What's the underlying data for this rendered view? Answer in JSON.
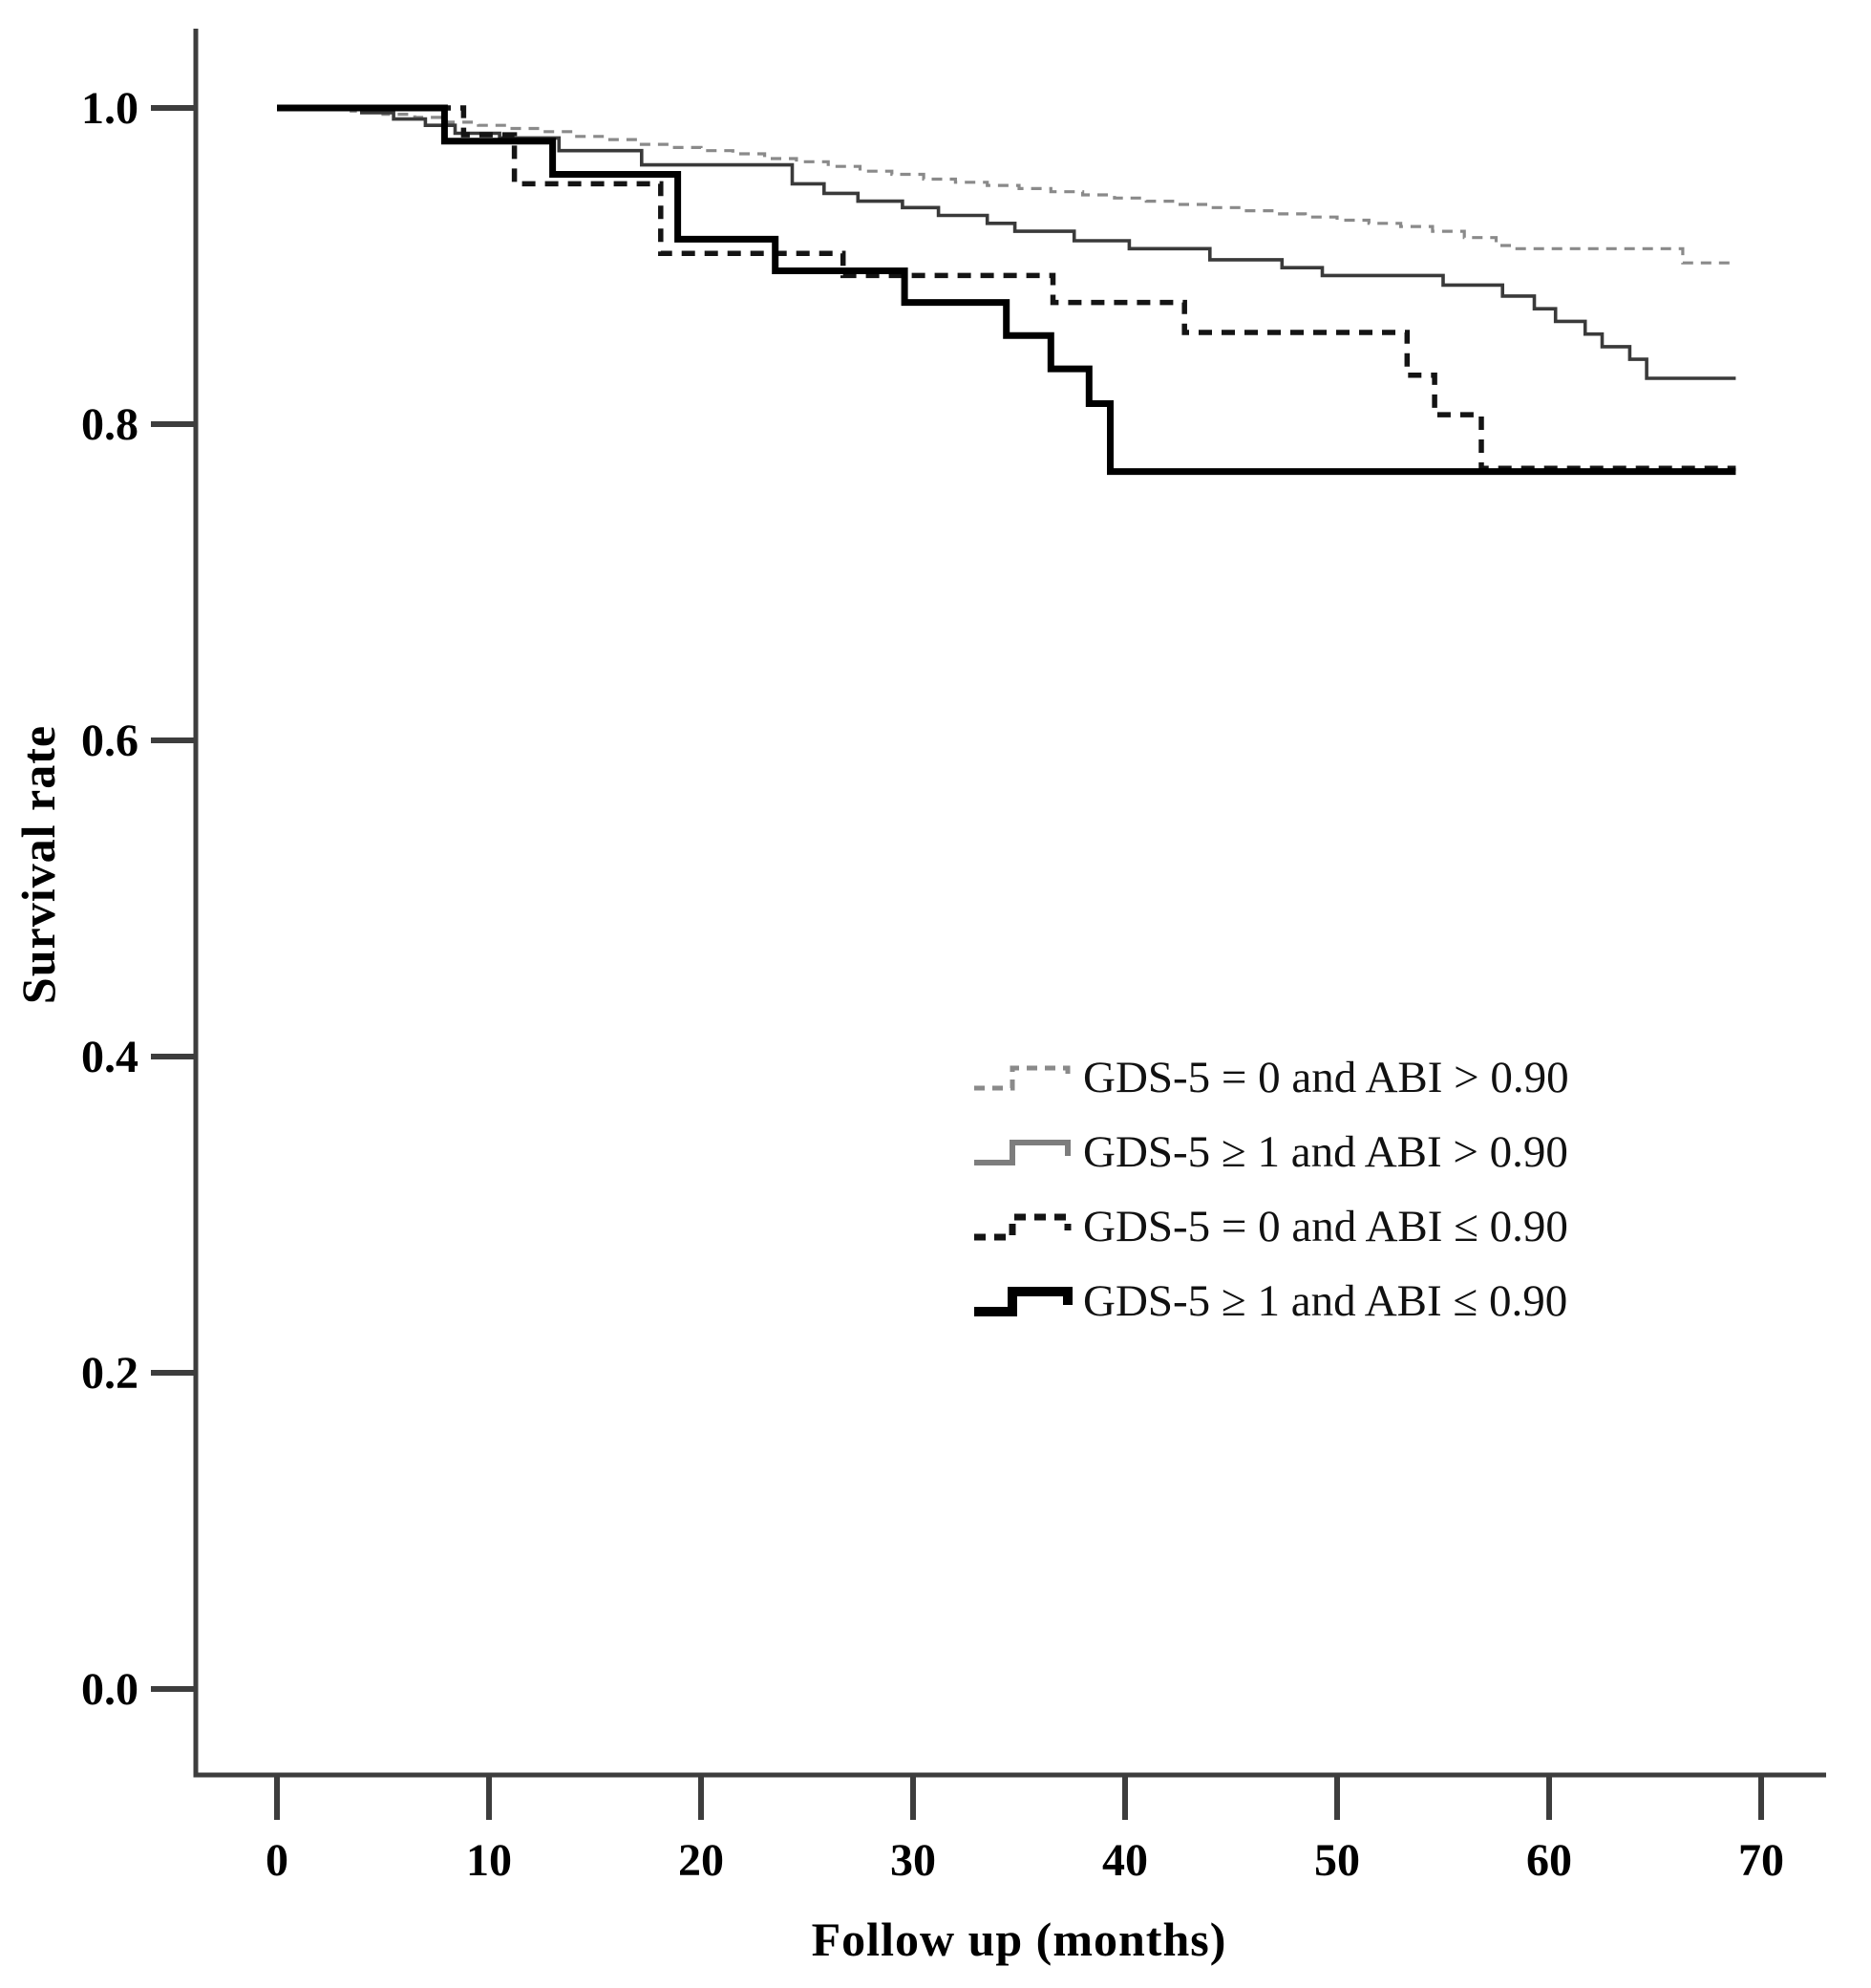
{
  "figure": {
    "background": "#ffffff"
  },
  "chart": {
    "y_label": "Survival rate",
    "x_label": "Follow up (months)",
    "axis_color": "#3d3d3d",
    "text_color": "#000000"
  },
  "legend": {
    "items": [
      {
        "label": "GDS-5 = 0 and ABI > 0.90",
        "swatch": "thin-dashed-gray"
      },
      {
        "label": "GDS-5 ≥ 1 and ABI > 0.90",
        "swatch": "thin-solid-gray"
      },
      {
        "label": "GDS-5 = 0 and ABI ≤ 0.90",
        "swatch": "thick-dashed-black"
      },
      {
        "label": "GDS-5 ≥ 1 and ABI ≤ 0.90",
        "swatch": "thick-solid-black"
      }
    ]
  },
  "chart_data": {
    "type": "line",
    "subtype": "kaplan-meier-step",
    "title": "",
    "xlabel": "Follow up (months)",
    "ylabel": "Survival rate",
    "xlim": [
      0,
      70
    ],
    "ylim": [
      0.0,
      1.0
    ],
    "grid": false,
    "legend_position": "center-right",
    "x_tick_values": [
      0,
      10,
      20,
      30,
      40,
      50,
      60,
      70
    ],
    "x_tick_labels": [
      "0",
      "10",
      "20",
      "30",
      "40",
      "50",
      "60",
      "70"
    ],
    "y_tick_values": [
      1.0,
      0.8,
      0.6,
      0.4,
      0.2,
      0.0
    ],
    "y_tick_labels": [
      "1.0",
      "0.8",
      "0.6",
      "0.4",
      "0.2",
      "0.0"
    ],
    "series": [
      {
        "name": "GDS-5 = 0 and ABI > 0.90",
        "color": "#8a8a8a",
        "width": 3.2,
        "dash": "11 8",
        "points": [
          [
            0,
            1.0
          ],
          [
            3.5,
            0.998
          ],
          [
            5,
            0.996
          ],
          [
            6.5,
            0.994
          ],
          [
            8,
            0.991
          ],
          [
            9.5,
            0.989
          ],
          [
            11,
            0.987
          ],
          [
            12.5,
            0.985
          ],
          [
            14,
            0.982
          ],
          [
            15.5,
            0.98
          ],
          [
            17,
            0.977
          ],
          [
            18.5,
            0.975
          ],
          [
            20,
            0.973
          ],
          [
            21.5,
            0.971
          ],
          [
            23,
            0.968
          ],
          [
            24.5,
            0.966
          ],
          [
            26,
            0.963
          ],
          [
            27.5,
            0.96
          ],
          [
            29,
            0.958
          ],
          [
            30.5,
            0.955
          ],
          [
            32,
            0.953
          ],
          [
            33.5,
            0.951
          ],
          [
            35,
            0.949
          ],
          [
            36.5,
            0.947
          ],
          [
            38,
            0.945
          ],
          [
            39.5,
            0.943
          ],
          [
            41,
            0.941
          ],
          [
            42.5,
            0.939
          ],
          [
            44,
            0.937
          ],
          [
            45.5,
            0.935
          ],
          [
            47,
            0.933
          ],
          [
            48.5,
            0.931
          ],
          [
            50,
            0.929
          ],
          [
            51.5,
            0.927
          ],
          [
            53,
            0.925
          ],
          [
            54.5,
            0.922
          ],
          [
            56,
            0.918
          ],
          [
            57.5,
            0.913
          ],
          [
            58.4,
            0.911
          ],
          [
            66.3,
            0.902
          ],
          [
            68.8,
            0.902
          ]
        ]
      },
      {
        "name": "GDS-5 ≥ 1 and ABI > 0.90",
        "color": "#3a3a3a",
        "width": 3.6,
        "dash": null,
        "points": [
          [
            0,
            1.0
          ],
          [
            4,
            0.997
          ],
          [
            5.5,
            0.993
          ],
          [
            7,
            0.989
          ],
          [
            8.4,
            0.984
          ],
          [
            10.5,
            0.981
          ],
          [
            13.3,
            0.973
          ],
          [
            17.2,
            0.964
          ],
          [
            24.3,
            0.952
          ],
          [
            25.8,
            0.946
          ],
          [
            27.4,
            0.941
          ],
          [
            29.5,
            0.937
          ],
          [
            31.2,
            0.932
          ],
          [
            33.5,
            0.927
          ],
          [
            34.8,
            0.922
          ],
          [
            37.6,
            0.916
          ],
          [
            40.2,
            0.911
          ],
          [
            44,
            0.904
          ],
          [
            47.4,
            0.899
          ],
          [
            49.3,
            0.894
          ],
          [
            55,
            0.888
          ],
          [
            57.8,
            0.881
          ],
          [
            59.3,
            0.873
          ],
          [
            60.3,
            0.865
          ],
          [
            61.7,
            0.857
          ],
          [
            62.5,
            0.849
          ],
          [
            63.8,
            0.841
          ],
          [
            64.6,
            0.829
          ],
          [
            68.8,
            0.829
          ]
        ]
      },
      {
        "name": "GDS-5 = 0 and ABI ≤ 0.90",
        "color": "#141414",
        "width": 5.5,
        "dash": "14 10",
        "points": [
          [
            0,
            1.0
          ],
          [
            8.8,
            0.983
          ],
          [
            11.2,
            0.952
          ],
          [
            18.1,
            0.908
          ],
          [
            26.7,
            0.894
          ],
          [
            36.6,
            0.877
          ],
          [
            42.8,
            0.858
          ],
          [
            53.3,
            0.831
          ],
          [
            54.6,
            0.806
          ],
          [
            56.8,
            0.772
          ],
          [
            68.8,
            0.772
          ]
        ]
      },
      {
        "name": "GDS-5 ≥ 1 and ABI ≤ 0.90",
        "color": "#000000",
        "width": 7,
        "dash": null,
        "points": [
          [
            0,
            1.0
          ],
          [
            7.9,
            0.979
          ],
          [
            13.0,
            0.958
          ],
          [
            18.9,
            0.917
          ],
          [
            23.5,
            0.897
          ],
          [
            29.6,
            0.877
          ],
          [
            34.4,
            0.856
          ],
          [
            36.5,
            0.835
          ],
          [
            38.3,
            0.813
          ],
          [
            39.3,
            0.77
          ],
          [
            68.8,
            0.77
          ]
        ]
      }
    ]
  }
}
